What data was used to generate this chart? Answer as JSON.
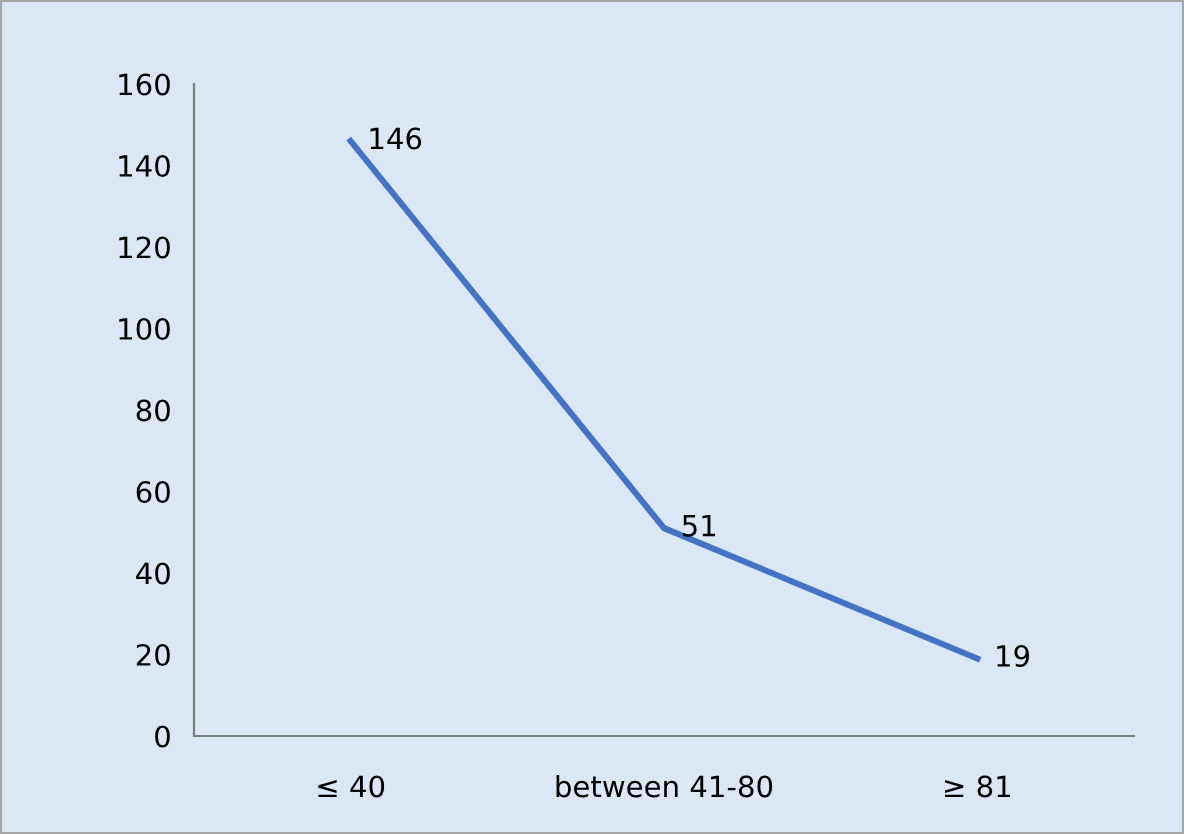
{
  "chart_data": {
    "type": "line",
    "categories": [
      "≤ 40",
      "between 41-80",
      "≥ 81"
    ],
    "series": [
      {
        "color": "#4472c4",
        "values": [
          146,
          51,
          19
        ]
      }
    ],
    "ylim": [
      0,
      160
    ],
    "yticks": [
      0,
      20,
      40,
      60,
      80,
      100,
      120,
      140,
      160
    ],
    "grid": false,
    "legend": false,
    "marker": "none",
    "line_style": "solid",
    "data_labels": true
  }
}
